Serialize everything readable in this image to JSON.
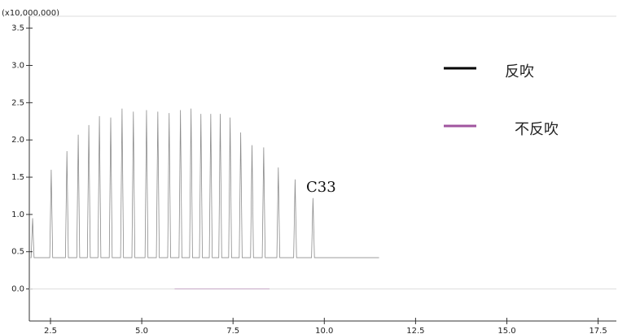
{
  "chart_data": {
    "type": "line",
    "axis_multiplier": "(x10,000,000)",
    "annotation": "C33",
    "xlim": [
      1.92,
      18.0
    ],
    "ylim": [
      -0.43,
      3.66
    ],
    "xticks": [
      2.5,
      {
        "value": 5,
        "label": "5.0"
      },
      7.5,
      {
        "value": 10,
        "label": "10.0"
      },
      12.5,
      {
        "value": 15,
        "label": "15.0"
      },
      17.5
    ],
    "yticks": [
      {
        "value": 0,
        "label": "0.0"
      },
      0.5,
      {
        "value": 1,
        "label": "1.0"
      },
      1.5,
      {
        "value": 2,
        "label": "2.0"
      },
      2.5,
      {
        "value": 3,
        "label": "3.0"
      },
      3.5
    ],
    "series": [
      {
        "name": "反吹",
        "color": "#000000",
        "x": [
          1.95,
          1.97,
          2.01,
          2.05,
          2.48,
          2.52,
          2.56,
          2.91,
          2.95,
          2.99,
          3.22,
          3.26,
          3.3,
          3.51,
          3.55,
          3.59,
          3.8,
          3.84,
          3.88,
          4.11,
          4.15,
          4.19,
          4.42,
          4.46,
          4.5,
          4.73,
          4.77,
          4.81,
          5.09,
          5.13,
          5.17,
          5.4,
          5.44,
          5.48,
          5.71,
          5.75,
          5.79,
          6.02,
          6.06,
          6.1,
          6.31,
          6.35,
          6.39,
          6.58,
          6.62,
          6.66,
          6.85,
          6.89,
          6.93,
          7.11,
          7.15,
          7.19,
          7.38,
          7.42,
          7.46,
          7.67,
          7.71,
          7.75,
          7.98,
          8.02,
          8.06,
          8.3,
          8.34,
          8.38,
          8.7,
          8.74,
          8.78,
          9.16,
          9.2,
          9.24,
          9.65,
          9.69,
          9.73,
          11.5
        ],
        "values": [
          0.42,
          0.42,
          0.95,
          0.42,
          0.42,
          1.6,
          0.42,
          0.42,
          1.85,
          0.42,
          0.42,
          2.07,
          0.42,
          0.42,
          2.2,
          0.42,
          0.42,
          2.32,
          0.42,
          0.42,
          2.3,
          0.42,
          0.42,
          2.42,
          0.42,
          0.42,
          2.38,
          0.42,
          0.42,
          2.4,
          0.42,
          0.42,
          2.38,
          0.42,
          0.42,
          2.36,
          0.42,
          0.42,
          2.4,
          0.42,
          0.42,
          2.42,
          0.42,
          0.42,
          2.35,
          0.42,
          0.42,
          2.35,
          0.42,
          0.42,
          2.35,
          0.42,
          0.42,
          2.3,
          0.42,
          0.42,
          2.1,
          0.42,
          0.42,
          1.93,
          0.42,
          0.42,
          1.9,
          0.42,
          0.42,
          1.63,
          0.42,
          0.42,
          1.47,
          0.42,
          0.42,
          1.22,
          0.42,
          0.42
        ]
      },
      {
        "name": "不反吹",
        "color": "#a0559f",
        "x": [
          5.9,
          8.5
        ],
        "values": [
          0.0,
          0.0
        ]
      }
    ]
  }
}
